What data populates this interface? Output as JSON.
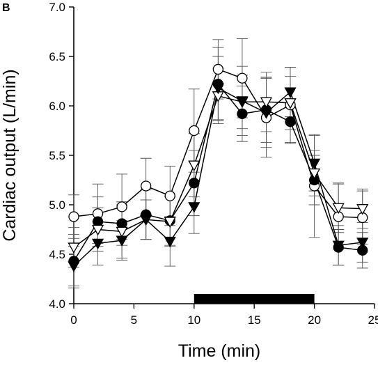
{
  "panel_label": "B",
  "chart_data": {
    "type": "line",
    "title": "",
    "xlabel": "Time (min)",
    "ylabel": "Cardiac output (L/min)",
    "xlim": [
      0,
      25
    ],
    "ylim": [
      4.0,
      7.0
    ],
    "x_ticks": [
      0,
      5,
      10,
      15,
      20,
      25
    ],
    "y_ticks": [
      4.0,
      4.5,
      5.0,
      5.5,
      6.0,
      6.5,
      7.0
    ],
    "x_tick_labels": [
      "0",
      "5",
      "10",
      "15",
      "20",
      "25"
    ],
    "y_tick_labels": [
      "4.0",
      "4.5",
      "5.0",
      "5.5",
      "6.0",
      "6.5",
      "7.0"
    ],
    "grid": false,
    "legend": "none",
    "stimulus_bar": {
      "x_start": 10,
      "x_end": 20,
      "color": "#000000"
    },
    "x": [
      0,
      2,
      4,
      6,
      8,
      10,
      12,
      14,
      16,
      18,
      20,
      22,
      24
    ],
    "series": [
      {
        "marker": "open-circle",
        "values": [
          4.88,
          4.91,
          4.98,
          5.19,
          5.09,
          5.75,
          6.37,
          6.28,
          5.88,
          6.01,
          5.19,
          4.88,
          4.87
        ],
        "errors": [
          0.22,
          0.3,
          0.33,
          0.28,
          0.3,
          0.42,
          0.3,
          0.4,
          0.4,
          0.38,
          0.52,
          0.33,
          0.27
        ]
      },
      {
        "marker": "filled-circle",
        "values": [
          4.43,
          4.83,
          4.81,
          4.9,
          4.84,
          5.22,
          6.22,
          5.92,
          5.96,
          5.84,
          5.25,
          4.57,
          4.54
        ],
        "errors": [
          0.27,
          0.25,
          0.22,
          0.25,
          0.25,
          0.33,
          0.37,
          0.28,
          0.33,
          0.22,
          0.25,
          0.18,
          0.18
        ]
      },
      {
        "marker": "open-triangle-down",
        "values": [
          4.57,
          4.75,
          4.73,
          4.85,
          4.83,
          5.4,
          6.1,
          6.04,
          6.04,
          6.03,
          5.32,
          4.97,
          4.96
        ],
        "errors": [
          0.2,
          0.22,
          0.27,
          0.2,
          0.25,
          0.32,
          0.28,
          0.27,
          0.3,
          0.27,
          0.23,
          0.25,
          0.2
        ]
      },
      {
        "marker": "filled-triangle-down",
        "values": [
          4.38,
          4.61,
          4.64,
          4.85,
          4.63,
          4.98,
          6.18,
          6.05,
          5.93,
          6.14,
          5.42,
          4.59,
          4.62
        ],
        "errors": [
          0.2,
          0.22,
          0.2,
          0.2,
          0.25,
          0.27,
          0.32,
          0.35,
          0.35,
          0.25,
          0.28,
          0.2,
          0.2
        ]
      }
    ]
  }
}
